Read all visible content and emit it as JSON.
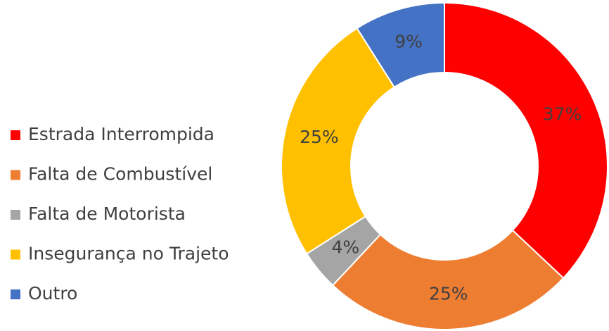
{
  "chart_data": {
    "type": "donut",
    "legend": "left",
    "categories": [
      "Estrada Interrompida",
      "Falta de Combustível",
      "Falta de Motorista",
      "Insegurança no Trajeto",
      "Outro"
    ],
    "values": [
      37,
      25,
      4,
      25,
      9
    ],
    "value_labels": [
      "37%",
      "25%",
      "4%",
      "25%",
      "9%"
    ],
    "colors": [
      "#ff0000",
      "#ed7d31",
      "#a5a5a5",
      "#ffc000",
      "#4472c4"
    ]
  }
}
